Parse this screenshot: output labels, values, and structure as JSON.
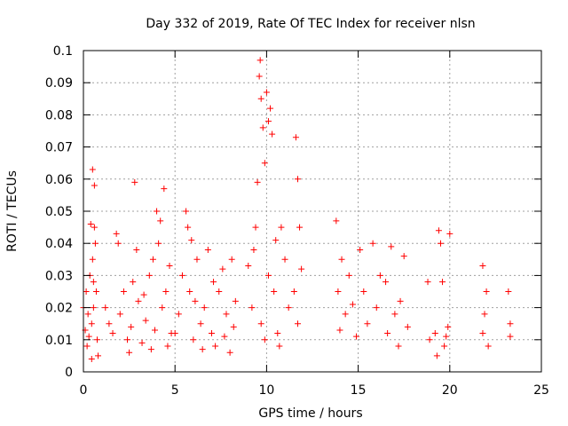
{
  "chart_data": {
    "type": "scatter",
    "title": "Day 332 of 2019, Rate Of TEC Index for receiver nlsn",
    "xlabel": "GPS time / hours",
    "ylabel": "ROTI / TECUs",
    "xlim": [
      0,
      25
    ],
    "ylim": [
      0,
      0.1
    ],
    "xticks": [
      0,
      5,
      10,
      15,
      20,
      25
    ],
    "xtick_labels": [
      "0",
      "5",
      "10",
      "15",
      "20",
      "25"
    ],
    "yticks": [
      0,
      0.01,
      0.02,
      0.03,
      0.04,
      0.05,
      0.06,
      0.07,
      0.08,
      0.09,
      0.1
    ],
    "ytick_labels": [
      "0",
      "0.01",
      "0.02",
      "0.03",
      "0.04",
      "0.05",
      "0.06",
      "0.07",
      "0.08",
      "0.09",
      "0.1"
    ],
    "grid": true,
    "marker": "+",
    "color": "#ff0000",
    "series": [
      {
        "points": [
          [
            0.0,
            0.02
          ],
          [
            0.1,
            0.013
          ],
          [
            0.15,
            0.025
          ],
          [
            0.2,
            0.008
          ],
          [
            0.25,
            0.018
          ],
          [
            0.3,
            0.011
          ],
          [
            0.35,
            0.03
          ],
          [
            0.4,
            0.046
          ],
          [
            0.45,
            0.015
          ],
          [
            0.5,
            0.063
          ],
          [
            0.55,
            0.02
          ],
          [
            0.6,
            0.058
          ],
          [
            0.65,
            0.04
          ],
          [
            0.7,
            0.025
          ],
          [
            0.75,
            0.01
          ],
          [
            0.8,
            0.005
          ],
          [
            0.5,
            0.035
          ],
          [
            0.55,
            0.028
          ],
          [
            0.6,
            0.045
          ],
          [
            0.45,
            0.004
          ],
          [
            1.2,
            0.02
          ],
          [
            1.4,
            0.015
          ],
          [
            1.6,
            0.012
          ],
          [
            1.8,
            0.043
          ],
          [
            1.9,
            0.04
          ],
          [
            2.0,
            0.018
          ],
          [
            2.2,
            0.025
          ],
          [
            2.4,
            0.01
          ],
          [
            2.6,
            0.014
          ],
          [
            2.8,
            0.059
          ],
          [
            2.9,
            0.038
          ],
          [
            3.0,
            0.022
          ],
          [
            3.2,
            0.009
          ],
          [
            3.4,
            0.016
          ],
          [
            3.6,
            0.03
          ],
          [
            3.8,
            0.035
          ],
          [
            3.9,
            0.013
          ],
          [
            4.0,
            0.05
          ],
          [
            4.2,
            0.047
          ],
          [
            4.3,
            0.02
          ],
          [
            4.4,
            0.057
          ],
          [
            4.5,
            0.025
          ],
          [
            4.6,
            0.008
          ],
          [
            4.8,
            0.012
          ],
          [
            4.1,
            0.04
          ],
          [
            3.7,
            0.007
          ],
          [
            2.5,
            0.006
          ],
          [
            2.7,
            0.028
          ],
          [
            3.3,
            0.024
          ],
          [
            4.7,
            0.033
          ],
          [
            5.0,
            0.012
          ],
          [
            5.2,
            0.018
          ],
          [
            5.4,
            0.03
          ],
          [
            5.6,
            0.05
          ],
          [
            5.7,
            0.045
          ],
          [
            5.8,
            0.025
          ],
          [
            6.0,
            0.01
          ],
          [
            6.2,
            0.035
          ],
          [
            6.4,
            0.015
          ],
          [
            6.6,
            0.02
          ],
          [
            6.8,
            0.038
          ],
          [
            7.0,
            0.012
          ],
          [
            7.2,
            0.008
          ],
          [
            7.4,
            0.025
          ],
          [
            7.6,
            0.032
          ],
          [
            7.8,
            0.018
          ],
          [
            8.0,
            0.006
          ],
          [
            8.1,
            0.035
          ],
          [
            8.2,
            0.014
          ],
          [
            8.3,
            0.022
          ],
          [
            5.9,
            0.041
          ],
          [
            6.5,
            0.007
          ],
          [
            7.1,
            0.028
          ],
          [
            7.7,
            0.011
          ],
          [
            6.1,
            0.022
          ],
          [
            9.0,
            0.033
          ],
          [
            9.2,
            0.02
          ],
          [
            9.4,
            0.045
          ],
          [
            9.5,
            0.059
          ],
          [
            9.6,
            0.092
          ],
          [
            9.65,
            0.097
          ],
          [
            9.7,
            0.085
          ],
          [
            9.8,
            0.076
          ],
          [
            9.9,
            0.065
          ],
          [
            10.0,
            0.087
          ],
          [
            10.1,
            0.078
          ],
          [
            10.2,
            0.082
          ],
          [
            10.3,
            0.074
          ],
          [
            10.1,
            0.03
          ],
          [
            9.7,
            0.015
          ],
          [
            10.4,
            0.025
          ],
          [
            10.5,
            0.041
          ],
          [
            10.6,
            0.012
          ],
          [
            10.8,
            0.045
          ],
          [
            11.0,
            0.035
          ],
          [
            11.2,
            0.02
          ],
          [
            11.5,
            0.025
          ],
          [
            11.6,
            0.073
          ],
          [
            11.7,
            0.06
          ],
          [
            11.8,
            0.045
          ],
          [
            11.9,
            0.032
          ],
          [
            11.7,
            0.015
          ],
          [
            9.9,
            0.01
          ],
          [
            10.7,
            0.008
          ],
          [
            9.3,
            0.038
          ],
          [
            13.8,
            0.047
          ],
          [
            13.9,
            0.025
          ],
          [
            14.0,
            0.013
          ],
          [
            14.1,
            0.035
          ],
          [
            14.3,
            0.018
          ],
          [
            14.5,
            0.03
          ],
          [
            14.7,
            0.021
          ],
          [
            14.9,
            0.011
          ],
          [
            15.1,
            0.038
          ],
          [
            15.3,
            0.025
          ],
          [
            15.5,
            0.015
          ],
          [
            15.8,
            0.04
          ],
          [
            16.0,
            0.02
          ],
          [
            16.2,
            0.03
          ],
          [
            16.5,
            0.028
          ],
          [
            16.6,
            0.012
          ],
          [
            16.8,
            0.039
          ],
          [
            17.0,
            0.018
          ],
          [
            17.2,
            0.008
          ],
          [
            17.5,
            0.036
          ],
          [
            17.7,
            0.014
          ],
          [
            18.8,
            0.028
          ],
          [
            18.9,
            0.01
          ],
          [
            19.2,
            0.012
          ],
          [
            19.4,
            0.044
          ],
          [
            19.5,
            0.04
          ],
          [
            19.6,
            0.028
          ],
          [
            19.7,
            0.008
          ],
          [
            19.9,
            0.014
          ],
          [
            20.0,
            0.043
          ],
          [
            21.8,
            0.033
          ],
          [
            21.9,
            0.018
          ],
          [
            22.0,
            0.025
          ],
          [
            22.1,
            0.008
          ],
          [
            21.8,
            0.012
          ],
          [
            23.2,
            0.025
          ],
          [
            23.3,
            0.011
          ],
          [
            23.3,
            0.015
          ],
          [
            19.3,
            0.005
          ],
          [
            19.8,
            0.011
          ],
          [
            17.3,
            0.022
          ]
        ]
      }
    ]
  }
}
